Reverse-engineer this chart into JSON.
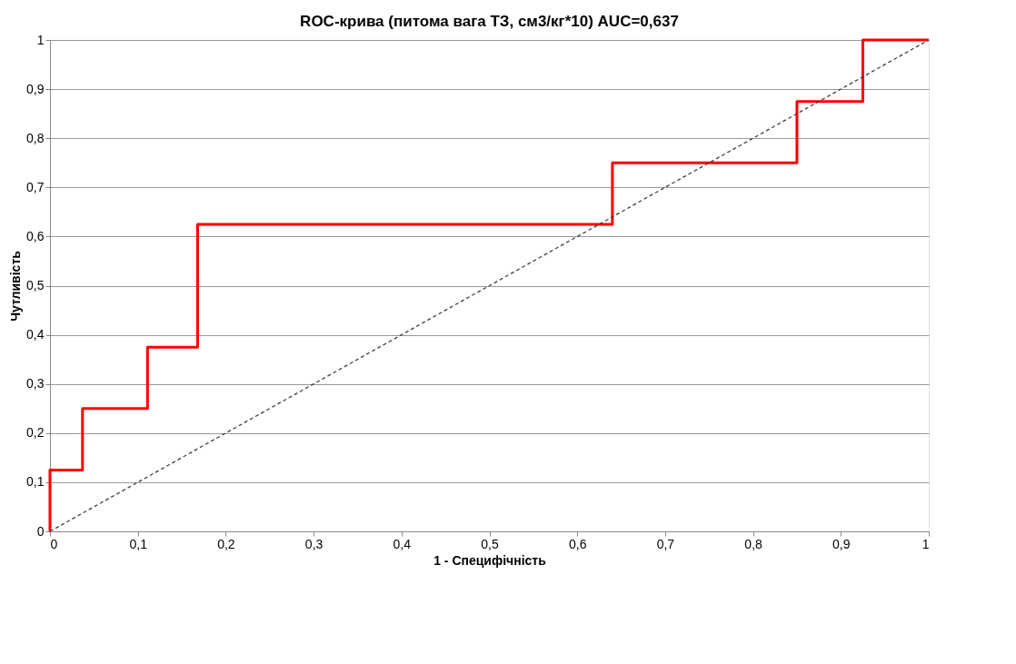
{
  "chart_data": {
    "type": "step",
    "title": "ROC-крива (питома вага ТЗ, см3/кг*10) AUC=0,637",
    "xlabel": "1 - Специфічність",
    "ylabel": "Чутливість",
    "series": [
      {
        "color": "#ff0000",
        "line_style": "solid",
        "x": [
          0,
          0,
          0.037,
          0.111,
          0.168,
          0.64,
          0.85,
          0.925,
          1
        ],
        "values": [
          0,
          0.125,
          0.25,
          0.375,
          0.625,
          0.75,
          0.875,
          1,
          1
        ]
      },
      {
        "type": "line",
        "color": "#404040",
        "line_style": "dashed",
        "x": [
          0,
          1
        ],
        "values": [
          0,
          1
        ]
      }
    ],
    "xlim": [
      0,
      1
    ],
    "ylim": [
      0,
      1
    ],
    "xticks": [
      0,
      {
        "value": 0.1,
        "label": "0,1"
      },
      {
        "value": 0.2,
        "label": "0,2"
      },
      {
        "value": 0.3,
        "label": "0,3"
      },
      {
        "value": 0.4,
        "label": "0,4"
      },
      {
        "value": 0.5,
        "label": "0,5"
      },
      {
        "value": 0.6,
        "label": "0,6"
      },
      {
        "value": 0.7,
        "label": "0,7"
      },
      {
        "value": 0.8,
        "label": "0,8"
      },
      {
        "value": 0.9,
        "label": "0,9"
      },
      1
    ],
    "yticks": [
      0,
      {
        "value": 0.1,
        "label": "0,1"
      },
      {
        "value": 0.2,
        "label": "0,2"
      },
      {
        "value": 0.3,
        "label": "0,3"
      },
      {
        "value": 0.4,
        "label": "0,4"
      },
      {
        "value": 0.5,
        "label": "0,5"
      },
      {
        "value": 0.6,
        "label": "0,6"
      },
      {
        "value": 0.7,
        "label": "0,7"
      },
      {
        "value": 0.8,
        "label": "0,8"
      },
      {
        "value": 0.9,
        "label": "0,9"
      },
      1
    ],
    "grid": "y"
  }
}
